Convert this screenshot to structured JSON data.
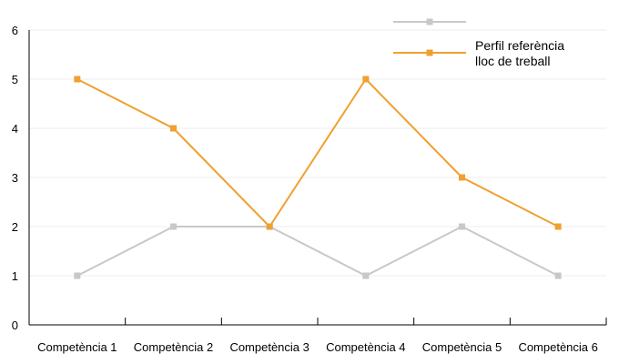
{
  "chart_data": {
    "type": "line",
    "categories": [
      "Competència 1",
      "Competència 2",
      "Competència 3",
      "Competència 4",
      "Competència 5",
      "Competència 6"
    ],
    "series": [
      {
        "name": "",
        "color": "#c8c8c8",
        "values": [
          1,
          2,
          2,
          1,
          2,
          1
        ]
      },
      {
        "name": "Perfil referència lloc de treball",
        "color": "#f0a030",
        "values": [
          5,
          4,
          2,
          5,
          3,
          2
        ]
      }
    ],
    "ylim": [
      0,
      6
    ],
    "yticks": [
      "0",
      "1",
      "2",
      "3",
      "4",
      "5",
      "6"
    ],
    "grid": true,
    "legend": "top-right"
  }
}
